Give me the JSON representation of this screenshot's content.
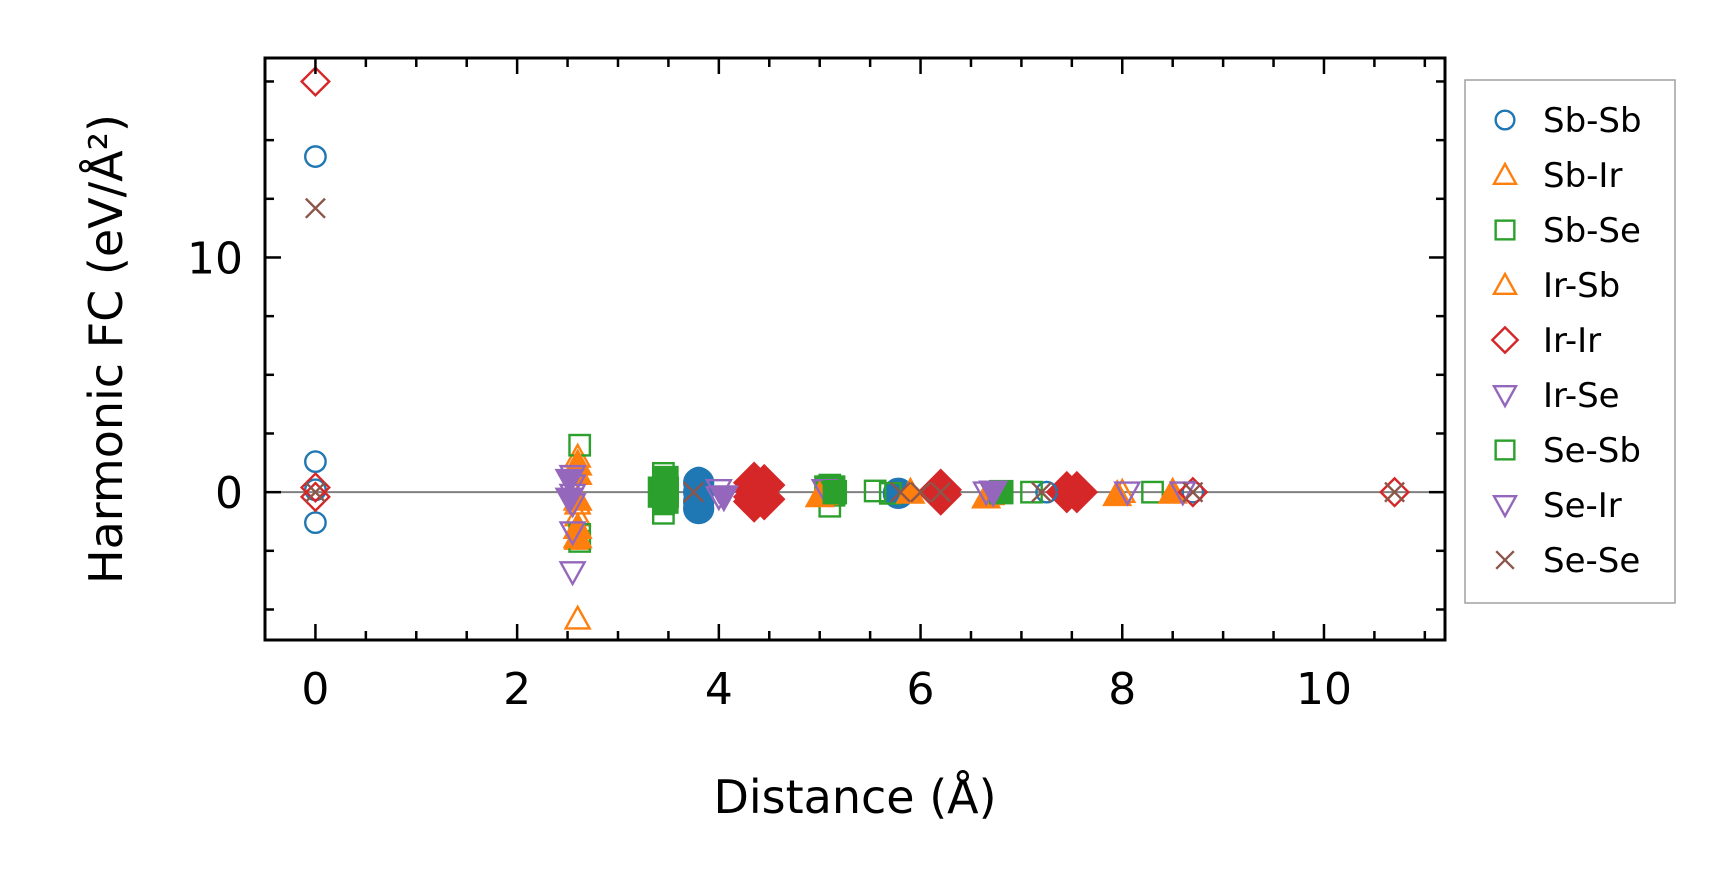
{
  "chart_data": {
    "type": "scatter",
    "xlabel": "Distance (Å)",
    "ylabel": "Harmonic FC (eV/Å²)",
    "xlim": [
      -0.5,
      11.2
    ],
    "ylim": [
      -6.3,
      18.5
    ],
    "x_ticks": [
      0,
      2,
      4,
      6,
      8,
      10
    ],
    "y_ticks": [
      0,
      10
    ],
    "zero_line": true,
    "legend_position": "outside-right",
    "series": [
      {
        "name": "Sb-Sb",
        "marker": "circle",
        "color": "#1f77b4",
        "filled": false,
        "points": [
          [
            0,
            14.3
          ],
          [
            0,
            1.3
          ],
          [
            0,
            -1.3
          ],
          [
            0,
            0.1
          ],
          [
            3.8,
            0.6
          ],
          [
            3.8,
            0.3
          ],
          [
            3.8,
            -0.2
          ],
          [
            3.8,
            -0.6
          ],
          [
            5.8,
            0.05
          ],
          [
            5.8,
            -0.15
          ],
          [
            7.25,
            0.0
          ],
          [
            8.7,
            0.0
          ]
        ]
      },
      {
        "name": "Sb-Ir",
        "marker": "triangle-up",
        "color": "#ff7f0e",
        "filled": false,
        "points": [
          [
            2.6,
            1.5
          ],
          [
            2.6,
            -0.5
          ],
          [
            2.6,
            -1.0
          ],
          [
            2.6,
            -2.0
          ],
          [
            2.6,
            -5.4
          ],
          [
            5.05,
            -0.1
          ],
          [
            6.7,
            -0.1
          ],
          [
            8.0,
            0.0
          ]
        ]
      },
      {
        "name": "Sb-Se",
        "marker": "square",
        "color": "#2ca02c",
        "filled": false,
        "points": [
          [
            2.62,
            2.0
          ],
          [
            2.62,
            -1.8
          ],
          [
            2.62,
            -2.1
          ],
          [
            3.45,
            0.8
          ],
          [
            3.45,
            0.5
          ],
          [
            3.45,
            0.2
          ],
          [
            3.45,
            -0.2
          ],
          [
            3.45,
            -0.5
          ],
          [
            3.45,
            -0.9
          ],
          [
            5.1,
            0.3
          ],
          [
            5.1,
            -0.6
          ],
          [
            5.55,
            0.05
          ],
          [
            5.7,
            -0.05
          ],
          [
            6.75,
            0.0
          ],
          [
            7.1,
            0.0
          ],
          [
            8.3,
            0.0
          ]
        ]
      },
      {
        "name": "Ir-Sb",
        "marker": "triangle-up",
        "color": "#ff7f0e",
        "filled": true,
        "points": [
          [
            2.6,
            1.2
          ],
          [
            2.6,
            0.8
          ],
          [
            2.6,
            -0.3
          ],
          [
            2.6,
            -1.5
          ],
          [
            2.6,
            -1.9
          ],
          [
            5.0,
            -0.15
          ],
          [
            5.9,
            0.0
          ],
          [
            6.65,
            -0.2
          ],
          [
            7.95,
            -0.1
          ],
          [
            8.5,
            0.0
          ]
        ]
      },
      {
        "name": "Ir-Ir",
        "marker": "diamond",
        "color": "#d62728",
        "filled": false,
        "points": [
          [
            0,
            17.5
          ],
          [
            0,
            0.2
          ],
          [
            0,
            -0.2
          ],
          [
            7.5,
            0.0
          ],
          [
            8.7,
            0.0
          ],
          [
            10.7,
            0.0
          ]
        ]
      },
      {
        "name": "Ir-Se",
        "marker": "triangle-down",
        "color": "#9467bd",
        "filled": false,
        "points": [
          [
            2.55,
            0.7
          ],
          [
            2.55,
            0.3
          ],
          [
            2.55,
            -0.1
          ],
          [
            2.55,
            -0.5
          ],
          [
            2.55,
            -1.7
          ],
          [
            2.55,
            -3.4
          ],
          [
            4.0,
            0.1
          ],
          [
            4.0,
            -0.2
          ],
          [
            5.05,
            0.1
          ],
          [
            6.65,
            0.0
          ],
          [
            8.05,
            0.0
          ],
          [
            8.6,
            0.0
          ]
        ]
      },
      {
        "name": "Se-Sb",
        "marker": "square",
        "color": "#2ca02c",
        "filled": true,
        "points": [
          [
            3.48,
            0.6
          ],
          [
            3.48,
            -0.4
          ],
          [
            5.15,
            0.0
          ],
          [
            6.8,
            0.0
          ]
        ]
      },
      {
        "name": "Se-Ir",
        "marker": "triangle-down",
        "color": "#9467bd",
        "filled": true,
        "points": [
          [
            2.52,
            0.5
          ],
          [
            2.52,
            -0.3
          ],
          [
            4.05,
            -0.2
          ],
          [
            6.72,
            0.0
          ]
        ]
      },
      {
        "name": "Se-Se",
        "marker": "x",
        "color": "#8c564b",
        "filled": false,
        "points": [
          [
            0,
            12.1
          ],
          [
            0,
            0.0
          ],
          [
            3.75,
            0.0
          ],
          [
            5.8,
            0.0
          ],
          [
            6.0,
            0.0
          ],
          [
            6.2,
            0.0
          ],
          [
            7.2,
            0.0
          ],
          [
            8.7,
            0.0
          ],
          [
            10.7,
            0.0
          ]
        ]
      }
    ],
    "filled_markers": [
      {
        "marker": "circle",
        "color": "#1f77b4",
        "points": [
          [
            3.8,
            0.4
          ],
          [
            3.8,
            0.0
          ],
          [
            3.8,
            -0.4
          ],
          [
            3.8,
            -0.7
          ],
          [
            5.78,
            -0.05
          ]
        ]
      },
      {
        "marker": "diamond",
        "color": "#d62728",
        "points": [
          [
            4.35,
            0.4
          ],
          [
            4.35,
            0.1
          ],
          [
            4.35,
            -0.2
          ],
          [
            4.35,
            -0.4
          ],
          [
            4.45,
            0.3
          ],
          [
            4.45,
            -0.3
          ],
          [
            6.2,
            0.1
          ],
          [
            6.2,
            -0.1
          ],
          [
            7.45,
            0.0
          ],
          [
            7.55,
            0.0
          ]
        ]
      },
      {
        "marker": "square",
        "color": "#2ca02c",
        "points": [
          [
            3.45,
            0.0
          ],
          [
            5.1,
            0.05
          ]
        ]
      }
    ]
  }
}
